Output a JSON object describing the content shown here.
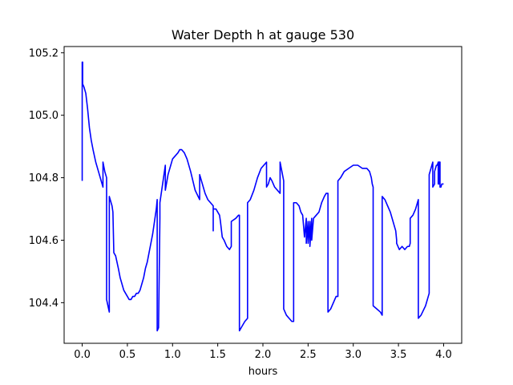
{
  "chart_data": {
    "type": "line",
    "title": "Water Depth h at gauge 530",
    "xlabel": "hours",
    "ylabel": "",
    "xlim": [
      -0.2,
      4.2
    ],
    "ylim": [
      104.27,
      105.22
    ],
    "xticks": [
      0.0,
      0.5,
      1.0,
      1.5,
      2.0,
      2.5,
      3.0,
      3.5,
      4.0
    ],
    "xtick_labels": [
      "0.0",
      "0.5",
      "1.0",
      "1.5",
      "2.0",
      "2.5",
      "3.0",
      "3.5",
      "4.0"
    ],
    "yticks": [
      104.4,
      104.6,
      104.8,
      105.0,
      105.2
    ],
    "ytick_labels": [
      "104.4",
      "104.6",
      "104.8",
      "105.0",
      "105.2"
    ],
    "grid": false,
    "color": "#0000ff",
    "series": [
      {
        "x": [
          0.0,
          0.0,
          0.005,
          0.005,
          0.02,
          0.04,
          0.06,
          0.08,
          0.1,
          0.12,
          0.15,
          0.18,
          0.21,
          0.23,
          0.23,
          0.25,
          0.27,
          0.27,
          0.3,
          0.3,
          0.33,
          0.34,
          0.35,
          0.37,
          0.4,
          0.42,
          0.44,
          0.46,
          0.48,
          0.5,
          0.52,
          0.54,
          0.56,
          0.58,
          0.6,
          0.62,
          0.64,
          0.66,
          0.68,
          0.7,
          0.72,
          0.74,
          0.76,
          0.78,
          0.8,
          0.82,
          0.83,
          0.83,
          0.845,
          0.86,
          0.86,
          0.88,
          0.9,
          0.92,
          0.92,
          0.95,
          0.98,
          1.0,
          1.03,
          1.06,
          1.08,
          1.1,
          1.13,
          1.16,
          1.2,
          1.25,
          1.3,
          1.3,
          1.33,
          1.36,
          1.39,
          1.42,
          1.45,
          1.45,
          1.45,
          1.48,
          1.5,
          1.52,
          1.53,
          1.55,
          1.57,
          1.6,
          1.63,
          1.65,
          1.65,
          1.7,
          1.73,
          1.74,
          1.74,
          1.76,
          1.78,
          1.8,
          1.83,
          1.83,
          1.86,
          1.9,
          1.94,
          1.98,
          2.01,
          2.04,
          2.04,
          2.06,
          2.08,
          2.1,
          2.13,
          2.16,
          2.19,
          2.19,
          2.21,
          2.23,
          2.23,
          2.26,
          2.29,
          2.32,
          2.34,
          2.34,
          2.37,
          2.4,
          2.42,
          2.44,
          2.46,
          2.48,
          2.48,
          2.5,
          2.5,
          2.52,
          2.52,
          2.54,
          2.54,
          2.56,
          2.59,
          2.62,
          2.65,
          2.68,
          2.7,
          2.72,
          2.72,
          2.75,
          2.78,
          2.81,
          2.83,
          2.83,
          2.86,
          2.9,
          2.95,
          3.0,
          3.05,
          3.1,
          3.15,
          3.18,
          3.2,
          3.21,
          3.22,
          3.22,
          3.26,
          3.3,
          3.32,
          3.32,
          3.35,
          3.38,
          3.41,
          3.44,
          3.47,
          3.48,
          3.48,
          3.51,
          3.54,
          3.57,
          3.6,
          3.62,
          3.63,
          3.63,
          3.66,
          3.69,
          3.72,
          3.72,
          3.75,
          3.8,
          3.84,
          3.84,
          3.87,
          3.88,
          3.88,
          3.9,
          3.9,
          3.92,
          3.93,
          3.94,
          3.94,
          3.95,
          3.95,
          3.96,
          3.96,
          3.97,
          3.98,
          4.0
        ],
        "values": [
          104.79,
          105.17,
          105.17,
          105.1,
          105.09,
          105.07,
          105.02,
          104.96,
          104.92,
          104.89,
          104.85,
          104.82,
          104.79,
          104.77,
          104.85,
          104.82,
          104.8,
          104.41,
          104.37,
          104.74,
          104.71,
          104.69,
          104.56,
          104.55,
          104.51,
          104.48,
          104.46,
          104.44,
          104.43,
          104.42,
          104.41,
          104.41,
          104.42,
          104.42,
          104.43,
          104.43,
          104.44,
          104.46,
          104.48,
          104.51,
          104.53,
          104.56,
          104.59,
          104.62,
          104.66,
          104.7,
          104.73,
          104.31,
          104.32,
          104.67,
          104.72,
          104.76,
          104.8,
          104.84,
          104.76,
          104.81,
          104.84,
          104.86,
          104.87,
          104.88,
          104.89,
          104.89,
          104.88,
          104.86,
          104.82,
          104.76,
          104.73,
          104.81,
          104.78,
          104.75,
          104.73,
          104.72,
          104.71,
          104.63,
          104.7,
          104.7,
          104.69,
          104.68,
          104.66,
          104.61,
          104.6,
          104.58,
          104.57,
          104.58,
          104.66,
          104.67,
          104.68,
          104.68,
          104.31,
          104.32,
          104.33,
          104.34,
          104.35,
          104.72,
          104.73,
          104.76,
          104.8,
          104.83,
          104.84,
          104.85,
          104.77,
          104.78,
          104.8,
          104.79,
          104.77,
          104.76,
          104.75,
          104.85,
          104.82,
          104.79,
          104.38,
          104.36,
          104.35,
          104.34,
          104.34,
          104.72,
          104.72,
          104.71,
          104.69,
          104.68,
          104.61,
          104.67,
          104.59,
          104.66,
          104.59,
          104.66,
          104.58,
          104.67,
          104.6,
          104.67,
          104.68,
          104.69,
          104.72,
          104.74,
          104.75,
          104.75,
          104.37,
          104.38,
          104.4,
          104.42,
          104.42,
          104.79,
          104.8,
          104.82,
          104.83,
          104.84,
          104.84,
          104.83,
          104.83,
          104.82,
          104.8,
          104.78,
          104.77,
          104.39,
          104.38,
          104.37,
          104.36,
          104.74,
          104.73,
          104.71,
          104.69,
          104.66,
          104.63,
          104.6,
          104.59,
          104.57,
          104.58,
          104.57,
          104.58,
          104.58,
          104.59,
          104.67,
          104.68,
          104.7,
          104.73,
          104.35,
          104.36,
          104.39,
          104.43,
          104.81,
          104.84,
          104.85,
          104.77,
          104.78,
          104.82,
          104.84,
          104.84,
          104.85,
          104.78,
          104.78,
          104.85,
          104.85,
          104.77,
          104.77,
          104.78,
          104.78
        ]
      }
    ]
  }
}
